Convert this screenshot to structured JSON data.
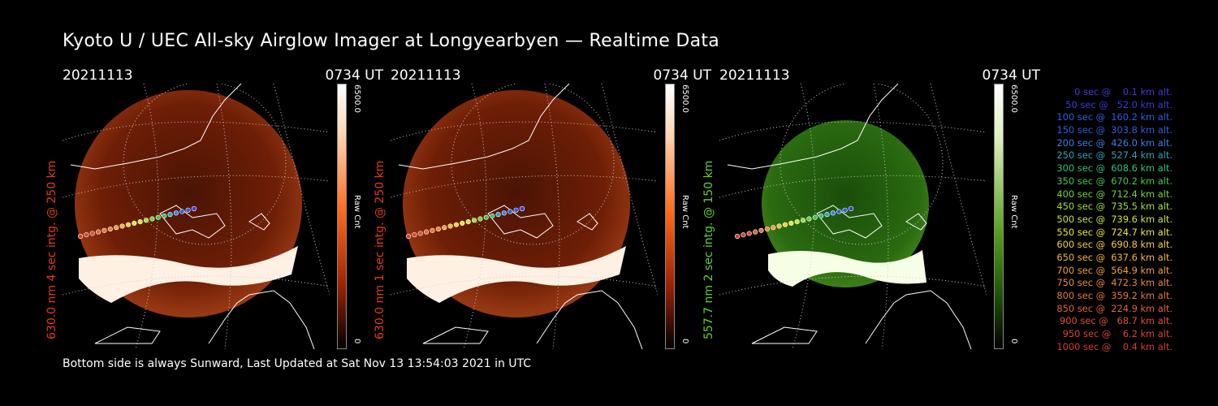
{
  "title": "Kyoto U / UEC All-sky Airglow Imager at Longyearbyen — Realtime Data",
  "footer": "Bottom side is always Sunward, Last Updated at Sat Nov 13 13:54:03 2021 in UTC",
  "panels": [
    {
      "date": "20211113",
      "time": "0734 UT",
      "ylabel": "630.0 nm 4 sec intg. @ 250 km",
      "label_color": "#e53a1c",
      "cbar_max": "6500.0",
      "cbar_label": "Raw Cnt",
      "cbar_min": "0",
      "palette": "red"
    },
    {
      "date": "20211113",
      "time": "0734 UT",
      "ylabel": "630.0 nm 1 sec intg. @ 250 km",
      "label_color": "#e53a1c",
      "cbar_max": "6500.0",
      "cbar_label": "Raw Cnt",
      "cbar_min": "0",
      "palette": "red"
    },
    {
      "date": "20211113",
      "time": "0734 UT",
      "ylabel": "557.7 nm 2 sec intg. @ 150 km",
      "label_color": "#5fd03a",
      "cbar_max": "6500.0",
      "cbar_label": "Raw Cnt",
      "cbar_min": "0",
      "palette": "green"
    }
  ],
  "legend": [
    {
      "text": "   0 sec @    0.1 km alt.",
      "color": "#3a3ad8"
    },
    {
      "text": "  50 sec @   52.0 km alt.",
      "color": "#3a3ad8"
    },
    {
      "text": " 100 sec @  160.2 km alt.",
      "color": "#2f5ee0"
    },
    {
      "text": " 150 sec @  303.8 km alt.",
      "color": "#2f5ee0"
    },
    {
      "text": " 200 sec @  426.0 km alt.",
      "color": "#3a7fe6"
    },
    {
      "text": " 250 sec @  527.4 km alt.",
      "color": "#2aa6b8"
    },
    {
      "text": " 300 sec @  608.6 km alt.",
      "color": "#2fc07e"
    },
    {
      "text": " 350 sec @  670.2 km alt.",
      "color": "#44c84a"
    },
    {
      "text": " 400 sec @  712.4 km alt.",
      "color": "#6fd43a"
    },
    {
      "text": " 450 sec @  735.5 km alt.",
      "color": "#9ee03a"
    },
    {
      "text": " 500 sec @  739.6 km alt.",
      "color": "#c8e83a"
    },
    {
      "text": " 550 sec @  724.7 km alt.",
      "color": "#e8e83a"
    },
    {
      "text": " 600 sec @  690.8 km alt.",
      "color": "#f2d23a"
    },
    {
      "text": " 650 sec @  637.6 km alt.",
      "color": "#f0b83a"
    },
    {
      "text": " 700 sec @  564.9 km alt.",
      "color": "#ee9f3a"
    },
    {
      "text": " 750 sec @  472.3 km alt.",
      "color": "#ea8a3a"
    },
    {
      "text": " 800 sec @  359.2 km alt.",
      "color": "#e6763a"
    },
    {
      "text": " 850 sec @  224.9 km alt.",
      "color": "#e2623a"
    },
    {
      "text": " 900 sec @   68.7 km alt.",
      "color": "#de503a"
    },
    {
      "text": " 950 sec @    6.2 km alt.",
      "color": "#da4232"
    },
    {
      "text": "1000 sec @    0.4 km alt.",
      "color": "#d63a2e"
    }
  ]
}
